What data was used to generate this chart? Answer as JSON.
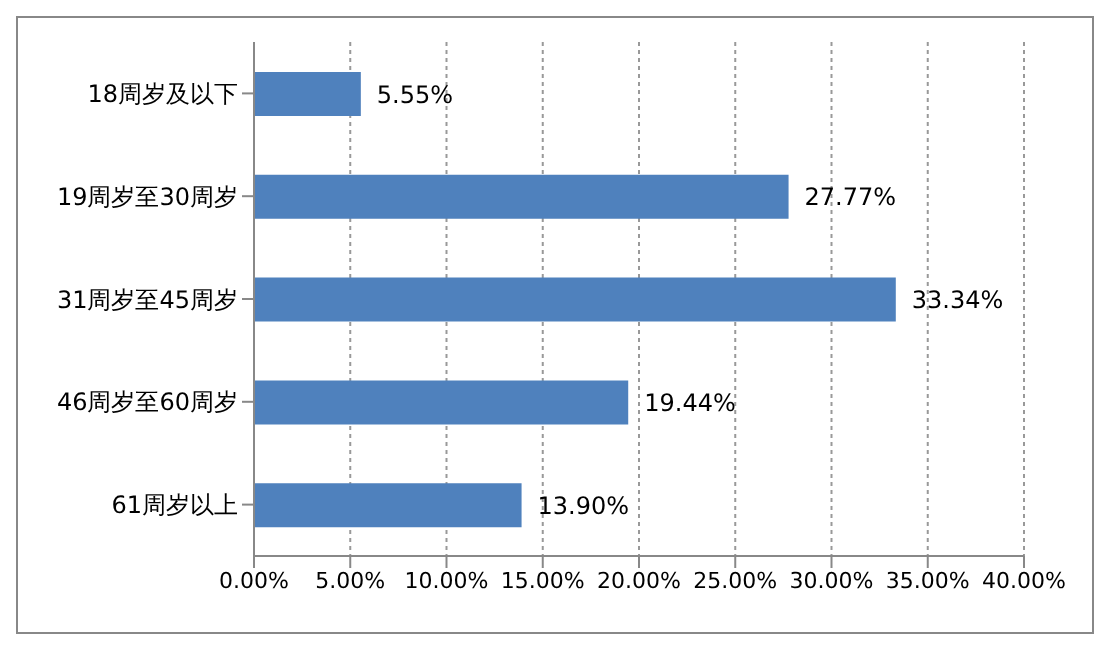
{
  "chart_data": {
    "type": "bar",
    "orientation": "horizontal",
    "categories": [
      "18周岁及以下",
      "19周岁至30周岁",
      "31周岁至45周岁",
      "46周岁至60周岁",
      "61周岁以上"
    ],
    "values": [
      5.55,
      27.77,
      33.34,
      19.44,
      13.9
    ],
    "value_labels": [
      "5.55%",
      "27.77%",
      "33.34%",
      "19.44%",
      "13.90%"
    ],
    "color": "#4f81bd",
    "xlim": [
      0,
      40
    ],
    "xticks": [
      {
        "value": 0,
        "label": "0.00%"
      },
      {
        "value": 5,
        "label": "5.00%"
      },
      {
        "value": 10,
        "label": "10.00%"
      },
      {
        "value": 15,
        "label": "15.00%"
      },
      {
        "value": 20,
        "label": "20.00%"
      },
      {
        "value": 25,
        "label": "25.00%"
      },
      {
        "value": 30,
        "label": "30.00%"
      },
      {
        "value": 35,
        "label": "35.00%"
      },
      {
        "value": 40,
        "label": "40.00%"
      }
    ],
    "grid": "x",
    "legend": false
  }
}
